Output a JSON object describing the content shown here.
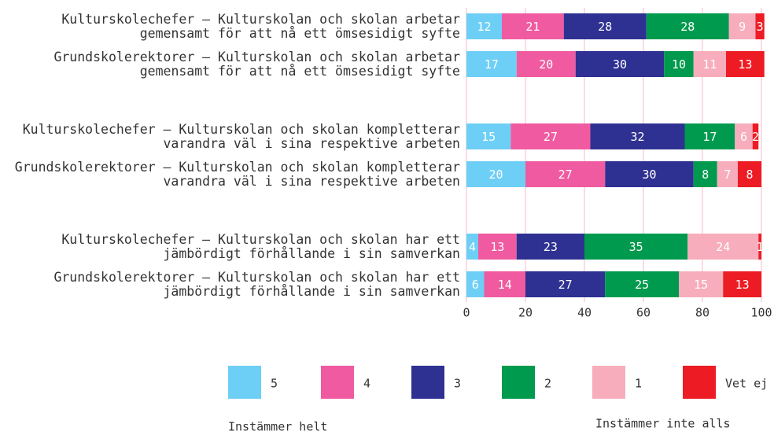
{
  "chart_data": {
    "type": "stacked-bar-horizontal",
    "categories": [
      "Kulturskolechefer – Kulturskolan och skolan arbetar\ngemensamt för att nå ett ömsesidigt syfte",
      "Grundskolerektorer – Kulturskolan och skolan arbetar\ngemensamt för att nå ett ömsesidigt syfte",
      "Kulturskolechefer – Kulturskolan och skolan kompletterar\nvarandra väl i sina respektive arbeten",
      "Grundskolerektorer – Kulturskolan och skolan kompletterar\nvarandra väl i sina respektive arbeten",
      "Kulturskolechefer – Kulturskolan och skolan har ett\njämbördigt förhållande i sin samverkan",
      "Grundskolerektorer – Kulturskolan och skolan har ett\njämbördigt förhållande i sin samverkan"
    ],
    "series": [
      {
        "name": "5",
        "color": "#6dcff6",
        "values": [
          12,
          17,
          15,
          20,
          4,
          6
        ]
      },
      {
        "name": "4",
        "color": "#f05aa0",
        "values": [
          21,
          20,
          27,
          27,
          13,
          14
        ]
      },
      {
        "name": "3",
        "color": "#2e3192",
        "values": [
          28,
          30,
          32,
          30,
          23,
          27
        ]
      },
      {
        "name": "2",
        "color": "#009a4e",
        "values": [
          28,
          10,
          17,
          8,
          35,
          25
        ]
      },
      {
        "name": "1",
        "color": "#f7adbb",
        "values": [
          9,
          11,
          6,
          7,
          24,
          15
        ]
      },
      {
        "name": "Vet ej",
        "color": "#ed1c24",
        "values": [
          3,
          13,
          2,
          8,
          1,
          13
        ]
      }
    ],
    "xlim": [
      0,
      100
    ],
    "xticks": [
      0,
      20,
      40,
      60,
      80,
      100
    ],
    "grid": true,
    "annotations": [
      "Instämmer helt",
      "Instämmer inte alls"
    ]
  }
}
